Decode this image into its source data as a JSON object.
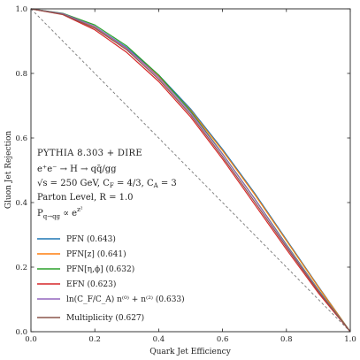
{
  "chart_data": {
    "type": "line",
    "xlabel": "Quark Jet Efficiency",
    "ylabel": "Gluon Jet Rejection",
    "xlim": [
      0,
      1
    ],
    "ylim": [
      0,
      1
    ],
    "x_ticks": [
      "0.0",
      "0.2",
      "0.4",
      "0.6",
      "0.8",
      "1.0"
    ],
    "y_ticks": [
      "0.0",
      "0.2",
      "0.4",
      "0.6",
      "0.8",
      "1.0"
    ],
    "grid": false,
    "legend_placement": "lower-left",
    "annotations": {
      "line1": "PYTHIA 8.303 + DIRE",
      "line2": "e⁺e⁻ → H → qq̄/gg",
      "line3": "√s = 250 GeV, C_F = 4/3, C_A = 3",
      "line4": "Parton Level, R = 1.0",
      "line5": "P_{q→qg} ∝ e^{z²}"
    },
    "x": [
      0.0,
      0.1,
      0.2,
      0.3,
      0.4,
      0.5,
      0.6,
      0.7,
      0.8,
      0.9,
      1.0
    ],
    "reference": {
      "style": "dashed",
      "x": [
        0,
        1
      ],
      "y": [
        1,
        0
      ]
    },
    "series": [
      {
        "name": "PFN (0.643)",
        "color": "#1f77b4",
        "values": [
          1.0,
          0.985,
          0.945,
          0.88,
          0.795,
          0.69,
          0.565,
          0.43,
          0.285,
          0.14,
          0.0
        ]
      },
      {
        "name": "PFN[z] (0.641)",
        "color": "#ff7f0e",
        "values": [
          1.0,
          0.984,
          0.943,
          0.877,
          0.791,
          0.686,
          0.561,
          0.426,
          0.282,
          0.138,
          0.0
        ]
      },
      {
        "name": "PFN[η,ϕ] (0.632)",
        "color": "#2ca02c",
        "values": [
          1.0,
          0.986,
          0.95,
          0.885,
          0.795,
          0.683,
          0.551,
          0.413,
          0.27,
          0.13,
          0.0
        ]
      },
      {
        "name": "EFN (0.623)",
        "color": "#d62728",
        "values": [
          1.0,
          0.982,
          0.935,
          0.865,
          0.775,
          0.665,
          0.535,
          0.395,
          0.255,
          0.12,
          0.0
        ]
      },
      {
        "name": "ln(C_F/C_A) n⁽⁰⁾ + n⁽²⁾ (0.633)",
        "color": "#9467bd",
        "values": [
          1.0,
          0.985,
          0.945,
          0.878,
          0.788,
          0.678,
          0.55,
          0.412,
          0.268,
          0.128,
          0.0
        ]
      },
      {
        "name": "Multiplicity (0.627)",
        "color": "#8c564b",
        "values": [
          1.0,
          0.983,
          0.94,
          0.873,
          0.782,
          0.672,
          0.542,
          0.403,
          0.262,
          0.125,
          0.0
        ]
      }
    ]
  }
}
